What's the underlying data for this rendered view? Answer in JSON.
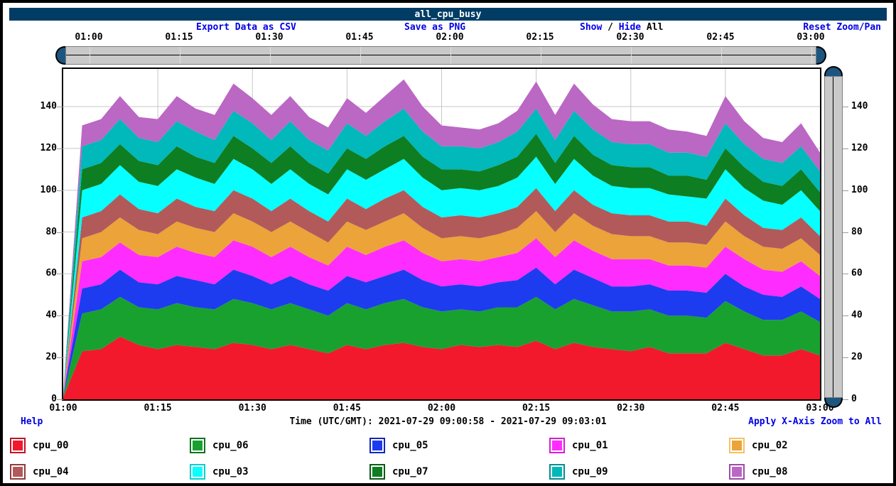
{
  "header": {
    "title": "all_cpu_busy",
    "titlebar_color": "#003c64"
  },
  "toolbar": {
    "export_csv": "Export Data as CSV",
    "save_png": "Save as PNG",
    "show_label": "Show",
    "slash": " / ",
    "hide_label": "Hide",
    "all_label": " All",
    "reset": "Reset Zoom/Pan"
  },
  "top_slider": {
    "labels": [
      "01:00",
      "01:15",
      "01:30",
      "01:45",
      "02:00",
      "02:15",
      "02:30",
      "02:45",
      "03:00"
    ]
  },
  "footer": {
    "help": "Help",
    "time_range": "Time (UTC/GMT): 2021-07-29 09:00:58 - 2021-07-29 09:03:01",
    "apply": "Apply X-Axis Zoom to All"
  },
  "colors": {
    "link": "#0000e6",
    "grid": "#c8c8c8",
    "slider_handle": "#1c5680",
    "tick": "#9a9a9a"
  },
  "chart_data": {
    "type": "area",
    "stacked": true,
    "title": "all_cpu_busy",
    "xlabel": "Time (UTC/GMT)",
    "ylabel": "",
    "grid": "on",
    "legend_position": "bottom",
    "ylim": [
      0,
      158
    ],
    "y_ticks": [
      0,
      20,
      40,
      60,
      80,
      100,
      120,
      140
    ],
    "x_tick_labels": [
      "01:00",
      "01:15",
      "01:30",
      "01:45",
      "02:00",
      "02:15",
      "02:30",
      "02:45",
      "03:00"
    ],
    "x": [
      "01:00",
      "01:03",
      "01:06",
      "01:09",
      "01:12",
      "01:15",
      "01:18",
      "01:21",
      "01:24",
      "01:27",
      "01:30",
      "01:33",
      "01:36",
      "01:39",
      "01:42",
      "01:45",
      "01:48",
      "01:51",
      "01:54",
      "01:57",
      "02:00",
      "02:03",
      "02:06",
      "02:09",
      "02:12",
      "02:15",
      "02:18",
      "02:21",
      "02:24",
      "02:27",
      "02:30",
      "02:33",
      "02:36",
      "02:39",
      "02:42",
      "02:45",
      "02:48",
      "02:51",
      "02:54",
      "02:57",
      "03:00"
    ],
    "series": [
      {
        "name": "cpu_00",
        "color": "#f2192d",
        "border": "#c41227",
        "values": [
          1,
          23,
          24,
          30,
          26,
          24,
          26,
          25,
          24,
          27,
          26,
          24,
          26,
          24,
          22,
          26,
          24,
          26,
          27,
          25,
          24,
          26,
          25,
          26,
          25,
          28,
          24,
          27,
          25,
          24,
          23,
          25,
          22,
          22,
          22,
          27,
          24,
          21,
          21,
          24,
          21
        ]
      },
      {
        "name": "cpu_06",
        "color": "#18a12f",
        "border": "#0e7220",
        "values": [
          0.5,
          18,
          19,
          19,
          18,
          19,
          20,
          19,
          19,
          21,
          20,
          19,
          20,
          19,
          18,
          20,
          19,
          20,
          21,
          19,
          18,
          17,
          17,
          18,
          19,
          21,
          19,
          21,
          20,
          18,
          19,
          18,
          18,
          18,
          17,
          20,
          18,
          17,
          17,
          18,
          16
        ]
      },
      {
        "name": "cpu_05",
        "color": "#1d3cf0",
        "border": "#1226b8",
        "values": [
          0.3,
          12,
          12,
          13,
          12,
          12,
          13,
          13,
          12,
          14,
          13,
          12,
          13,
          12,
          12,
          13,
          13,
          13,
          14,
          13,
          12,
          12,
          12,
          12,
          13,
          14,
          12,
          14,
          13,
          12,
          12,
          12,
          12,
          12,
          12,
          13,
          12,
          12,
          11,
          12,
          11
        ]
      },
      {
        "name": "cpu_01",
        "color": "#ff2cff",
        "border": "#d81cd8",
        "values": [
          0.3,
          13,
          13,
          13,
          13,
          13,
          14,
          13,
          13,
          14,
          14,
          13,
          14,
          13,
          12,
          14,
          13,
          14,
          14,
          13,
          12,
          12,
          12,
          12,
          13,
          14,
          13,
          14,
          13,
          13,
          13,
          12,
          12,
          12,
          12,
          13,
          13,
          12,
          12,
          12,
          11
        ]
      },
      {
        "name": "cpu_02",
        "color": "#eba33a",
        "border": "#f6c35c",
        "values": [
          0.3,
          11,
          12,
          12,
          12,
          11,
          12,
          12,
          12,
          13,
          12,
          12,
          12,
          12,
          11,
          12,
          12,
          12,
          13,
          12,
          11,
          11,
          11,
          11,
          12,
          13,
          12,
          13,
          12,
          12,
          11,
          11,
          11,
          11,
          11,
          12,
          11,
          11,
          11,
          11,
          10
        ]
      },
      {
        "name": "cpu_04",
        "color": "#b25a5a",
        "border": "#8f3d3d",
        "values": [
          0.2,
          10,
          10,
          11,
          10,
          10,
          11,
          10,
          10,
          11,
          11,
          10,
          11,
          10,
          10,
          11,
          10,
          11,
          11,
          10,
          10,
          10,
          10,
          10,
          10,
          11,
          10,
          11,
          10,
          10,
          10,
          10,
          10,
          10,
          9,
          11,
          10,
          9,
          9,
          10,
          9
        ]
      },
      {
        "name": "cpu_03",
        "color": "#06ffff",
        "border": "#00cfd0",
        "values": [
          0.3,
          13,
          13,
          14,
          13,
          13,
          14,
          14,
          13,
          15,
          14,
          13,
          14,
          13,
          13,
          14,
          14,
          14,
          15,
          14,
          13,
          13,
          13,
          13,
          14,
          15,
          13,
          15,
          14,
          13,
          13,
          13,
          13,
          12,
          13,
          14,
          13,
          13,
          12,
          13,
          12
        ]
      },
      {
        "name": "cpu_07",
        "color": "#0e7e22",
        "border": "#0a5a18",
        "values": [
          0.2,
          10,
          10,
          10,
          10,
          10,
          11,
          10,
          10,
          11,
          10,
          10,
          11,
          10,
          10,
          10,
          10,
          11,
          11,
          10,
          10,
          9,
          9,
          10,
          10,
          11,
          10,
          11,
          10,
          10,
          10,
          10,
          9,
          10,
          9,
          10,
          10,
          9,
          9,
          10,
          9
        ]
      },
      {
        "name": "cpu_09",
        "color": "#01b8ba",
        "border": "#008e92",
        "values": [
          0.2,
          11,
          11,
          12,
          11,
          11,
          12,
          12,
          11,
          12,
          12,
          11,
          12,
          11,
          11,
          12,
          11,
          12,
          13,
          12,
          11,
          11,
          11,
          11,
          12,
          12,
          11,
          12,
          12,
          11,
          11,
          11,
          11,
          11,
          11,
          12,
          11,
          11,
          11,
          11,
          10
        ]
      },
      {
        "name": "cpu_08",
        "color": "#bb67c4",
        "border": "#9e4aa8",
        "values": [
          0.2,
          10,
          10,
          11,
          10,
          11,
          12,
          11,
          12,
          13,
          12,
          12,
          12,
          11,
          11,
          12,
          11,
          12,
          14,
          12,
          10,
          9,
          9,
          9,
          10,
          13,
          12,
          13,
          12,
          11,
          11,
          11,
          11,
          10,
          10,
          13,
          11,
          10,
          10,
          11,
          9
        ]
      }
    ]
  }
}
